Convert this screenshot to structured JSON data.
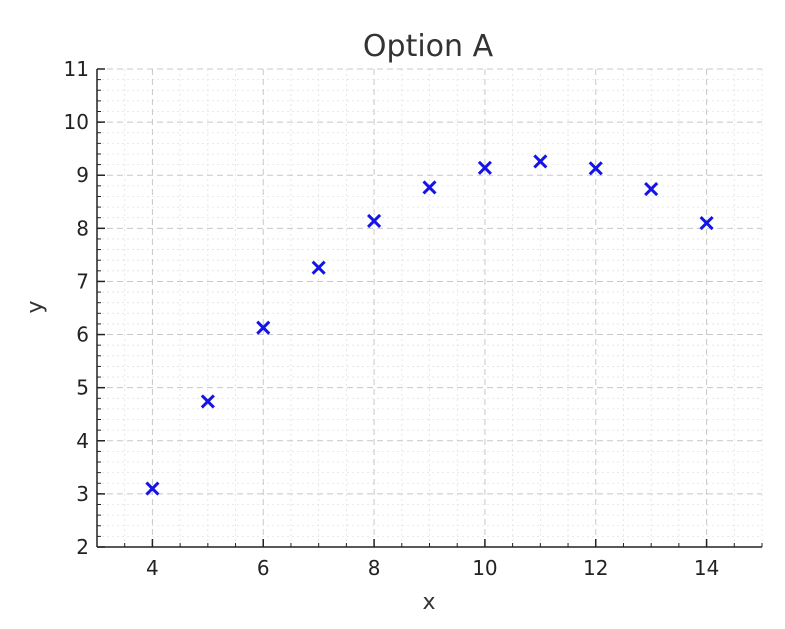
{
  "chart_data": {
    "type": "scatter",
    "title": "Option A",
    "xlabel": "x",
    "ylabel": "y",
    "xlim": [
      3,
      15
    ],
    "ylim": [
      2,
      11
    ],
    "x_ticks": [
      4,
      6,
      8,
      10,
      12,
      14
    ],
    "y_ticks": [
      2,
      3,
      4,
      5,
      6,
      7,
      8,
      9,
      10,
      11
    ],
    "x_minor_step": 0.5,
    "y_minor_step": 0.2,
    "grid": true,
    "marker": "x",
    "marker_color": "#1414e6",
    "series": [
      {
        "x": [
          4,
          5,
          6,
          7,
          8,
          9,
          10,
          11,
          12,
          13,
          14
        ],
        "y": [
          3.1,
          4.74,
          6.13,
          7.26,
          8.14,
          8.77,
          9.14,
          9.26,
          9.13,
          8.74,
          8.1
        ]
      }
    ]
  }
}
